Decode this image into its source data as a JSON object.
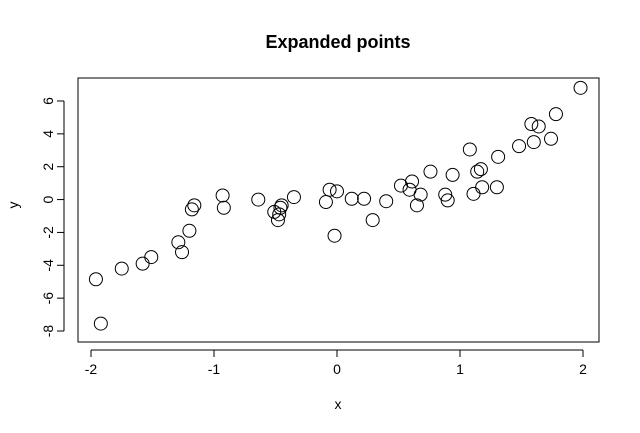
{
  "chart_data": {
    "type": "scatter",
    "title": "Expanded points",
    "xlabel": "x",
    "ylabel": "y",
    "xlim": [
      -2.0,
      2.0
    ],
    "ylim": [
      -8.0,
      7.0
    ],
    "xticks": [
      -2,
      -1,
      0,
      1,
      2
    ],
    "yticks": [
      -8,
      -6,
      -4,
      -2,
      0,
      2,
      4,
      6
    ],
    "grid": false,
    "marker": "open-circle",
    "points": [
      {
        "x": -1.96,
        "y": -4.85
      },
      {
        "x": -1.92,
        "y": -7.55
      },
      {
        "x": -1.75,
        "y": -4.2
      },
      {
        "x": -1.58,
        "y": -3.9
      },
      {
        "x": -1.51,
        "y": -3.5
      },
      {
        "x": -1.29,
        "y": -2.6
      },
      {
        "x": -1.26,
        "y": -3.2
      },
      {
        "x": -1.2,
        "y": -1.9
      },
      {
        "x": -1.18,
        "y": -0.6
      },
      {
        "x": -1.16,
        "y": -0.35
      },
      {
        "x": -0.93,
        "y": 0.25
      },
      {
        "x": -0.92,
        "y": -0.5
      },
      {
        "x": -0.64,
        "y": 0.0
      },
      {
        "x": -0.51,
        "y": -0.75
      },
      {
        "x": -0.48,
        "y": -1.25
      },
      {
        "x": -0.47,
        "y": -0.9
      },
      {
        "x": -0.46,
        "y": -0.5
      },
      {
        "x": -0.45,
        "y": -0.35
      },
      {
        "x": -0.35,
        "y": 0.15
      },
      {
        "x": -0.09,
        "y": -0.15
      },
      {
        "x": -0.06,
        "y": 0.6
      },
      {
        "x": -0.02,
        "y": -2.2
      },
      {
        "x": 0.0,
        "y": 0.5
      },
      {
        "x": 0.12,
        "y": 0.05
      },
      {
        "x": 0.22,
        "y": 0.05
      },
      {
        "x": 0.29,
        "y": -1.25
      },
      {
        "x": 0.4,
        "y": -0.1
      },
      {
        "x": 0.52,
        "y": 0.85
      },
      {
        "x": 0.59,
        "y": 0.6
      },
      {
        "x": 0.61,
        "y": 1.1
      },
      {
        "x": 0.65,
        "y": -0.35
      },
      {
        "x": 0.68,
        "y": 0.3
      },
      {
        "x": 0.76,
        "y": 1.7
      },
      {
        "x": 0.88,
        "y": 0.3
      },
      {
        "x": 0.9,
        "y": -0.05
      },
      {
        "x": 0.94,
        "y": 1.5
      },
      {
        "x": 1.08,
        "y": 3.05
      },
      {
        "x": 1.11,
        "y": 0.35
      },
      {
        "x": 1.14,
        "y": 1.7
      },
      {
        "x": 1.17,
        "y": 1.85
      },
      {
        "x": 1.18,
        "y": 0.75
      },
      {
        "x": 1.3,
        "y": 0.75
      },
      {
        "x": 1.31,
        "y": 2.6
      },
      {
        "x": 1.48,
        "y": 3.25
      },
      {
        "x": 1.58,
        "y": 4.6
      },
      {
        "x": 1.6,
        "y": 3.5
      },
      {
        "x": 1.64,
        "y": 4.45
      },
      {
        "x": 1.74,
        "y": 3.7
      },
      {
        "x": 1.78,
        "y": 5.2
      },
      {
        "x": 1.98,
        "y": 6.8
      }
    ]
  }
}
